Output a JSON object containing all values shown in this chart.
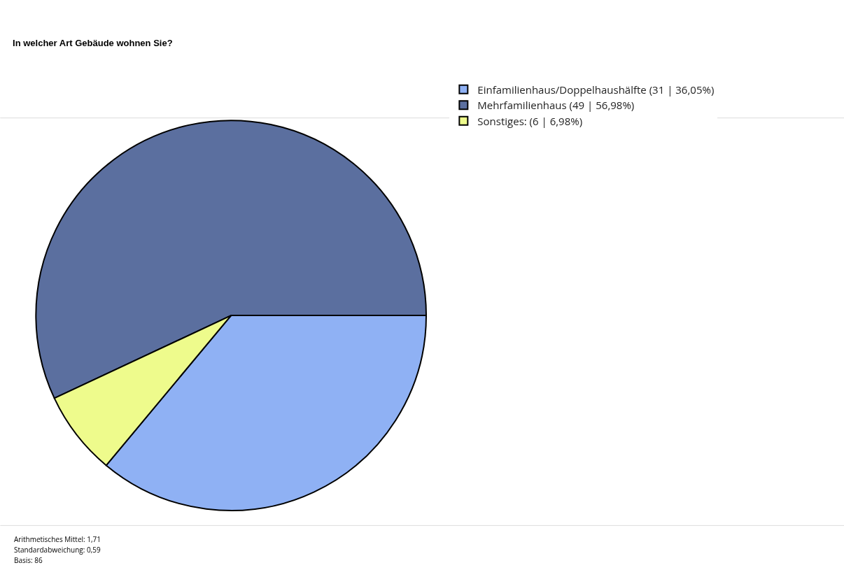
{
  "chart_data": {
    "type": "pie",
    "title": "In welcher Art Gebäude wohnen Sie?",
    "categories": [
      "Einfamilienhaus/Doppelhaushälfte (31 | 36,05%)",
      "Mehrfamilienhaus (49 | 56,98%)",
      "Sonstiges: (6 | 6,98%)"
    ],
    "values": [
      31,
      49,
      6
    ],
    "colors": [
      "#8fb1f4",
      "#5b6f9f",
      "#eefb8c"
    ],
    "legend": "top right",
    "annotations": [
      "Arithmetisches Mittel: 1,71",
      "Standardabweichung: 0,59",
      "Basis: 86"
    ]
  }
}
